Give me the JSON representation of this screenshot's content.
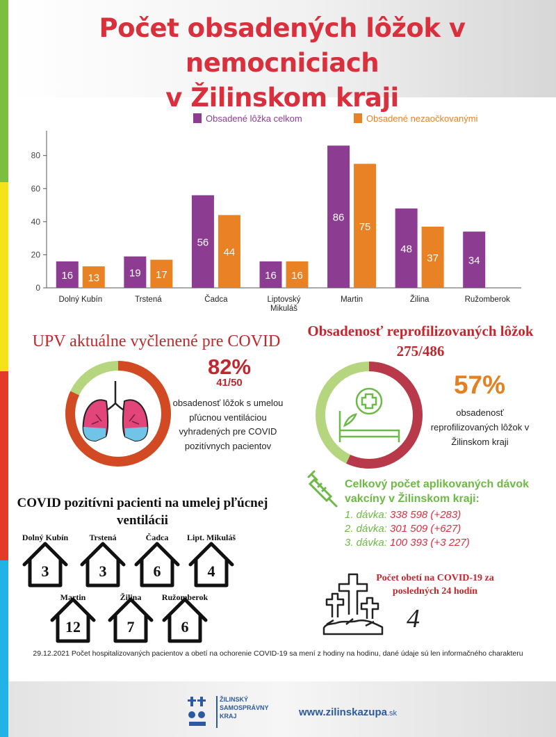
{
  "title_line1": "Počet obsadených lôžok v nemocniciach",
  "title_line2": "v Žilinskom kraji",
  "chart_data": {
    "type": "bar",
    "categories": [
      "Dolný Kubín",
      "Trstená",
      "Čadca",
      "Liptovský Mikuláš",
      "Martin",
      "Žilina",
      "Ružomberok"
    ],
    "series": [
      {
        "name": "Obsadené lôžka celkom",
        "color": "#8c3d92",
        "values": [
          16,
          19,
          56,
          16,
          86,
          48,
          34
        ]
      },
      {
        "name": "Obsadené nezaočkovanými",
        "color": "#e88224",
        "values": [
          13,
          17,
          44,
          16,
          75,
          37,
          null
        ]
      }
    ],
    "ylim": [
      0,
      95
    ],
    "yticks": [
      0,
      20,
      40,
      60,
      80
    ],
    "legend": "top",
    "grid": false
  },
  "upv": {
    "title": "UPV aktuálne vyčlenené pre COVID",
    "percent": "82%",
    "ratio": "41/50",
    "fraction": 0.82,
    "description": "obsadenosť lôžok s umelou pľúcnou ventiláciou vyhradených pre COVID pozitívnych pacientov",
    "icon": "lungs-icon",
    "ring_color": "#d24a23",
    "ring_rest_color": "#b5d67e"
  },
  "reprofil": {
    "title_line1": "Obsadenosť reprofilizovaných lôžok",
    "title_line2": "275/486",
    "percent": "57%",
    "fraction": 0.57,
    "description": "obsadenosť reprofilizovaných lôžok v Žilinskom kraji",
    "icon": "hospital-bed-icon",
    "ring_color": "#b83a4a",
    "ring_rest_color": "#b5d67e"
  },
  "vaccines": {
    "title": "Celkový počet aplikovaných dávok vakcíny v Žilinskom kraji:",
    "icon": "syringe-icon",
    "doses": [
      {
        "label": "1. dávka:",
        "value": "338 598 (+283)"
      },
      {
        "label": "2. dávka:",
        "value": "301 509 (+627)"
      },
      {
        "label": "3. dávka:",
        "value": "100 393 (+3 227)"
      }
    ]
  },
  "ventilation": {
    "title": "COVID pozitívni pacienti na umelej pľúcnej ventilácii",
    "houses": [
      {
        "name": "Dolný Kubín",
        "value": "3"
      },
      {
        "name": "Trstená",
        "value": "3"
      },
      {
        "name": "Čadca",
        "value": "6"
      },
      {
        "name": "Lipt. Mikuláš",
        "value": "4"
      },
      {
        "name": "Martin",
        "value": "12"
      },
      {
        "name": "Žilina",
        "value": "7"
      },
      {
        "name": "Ružomberok",
        "value": "6"
      }
    ]
  },
  "deaths": {
    "title": "Počet obetí na COVID-19 za posledných 24 hodín",
    "value": "4",
    "icon": "graves-icon"
  },
  "footnote": "29.12.2021 Počet hospitalizovaných pacientov a obetí na ochorenie COVID-19 sa mení z hodiny na hodinu, dané údaje sú len informačného charakteru",
  "footer": {
    "logo_line1": "ŽILINSKÝ",
    "logo_line2": "SAMOSPRÁVNY",
    "logo_line3": "KRAJ",
    "website_main": "www.zilinskazupa",
    "website_suffix": ".sk"
  }
}
